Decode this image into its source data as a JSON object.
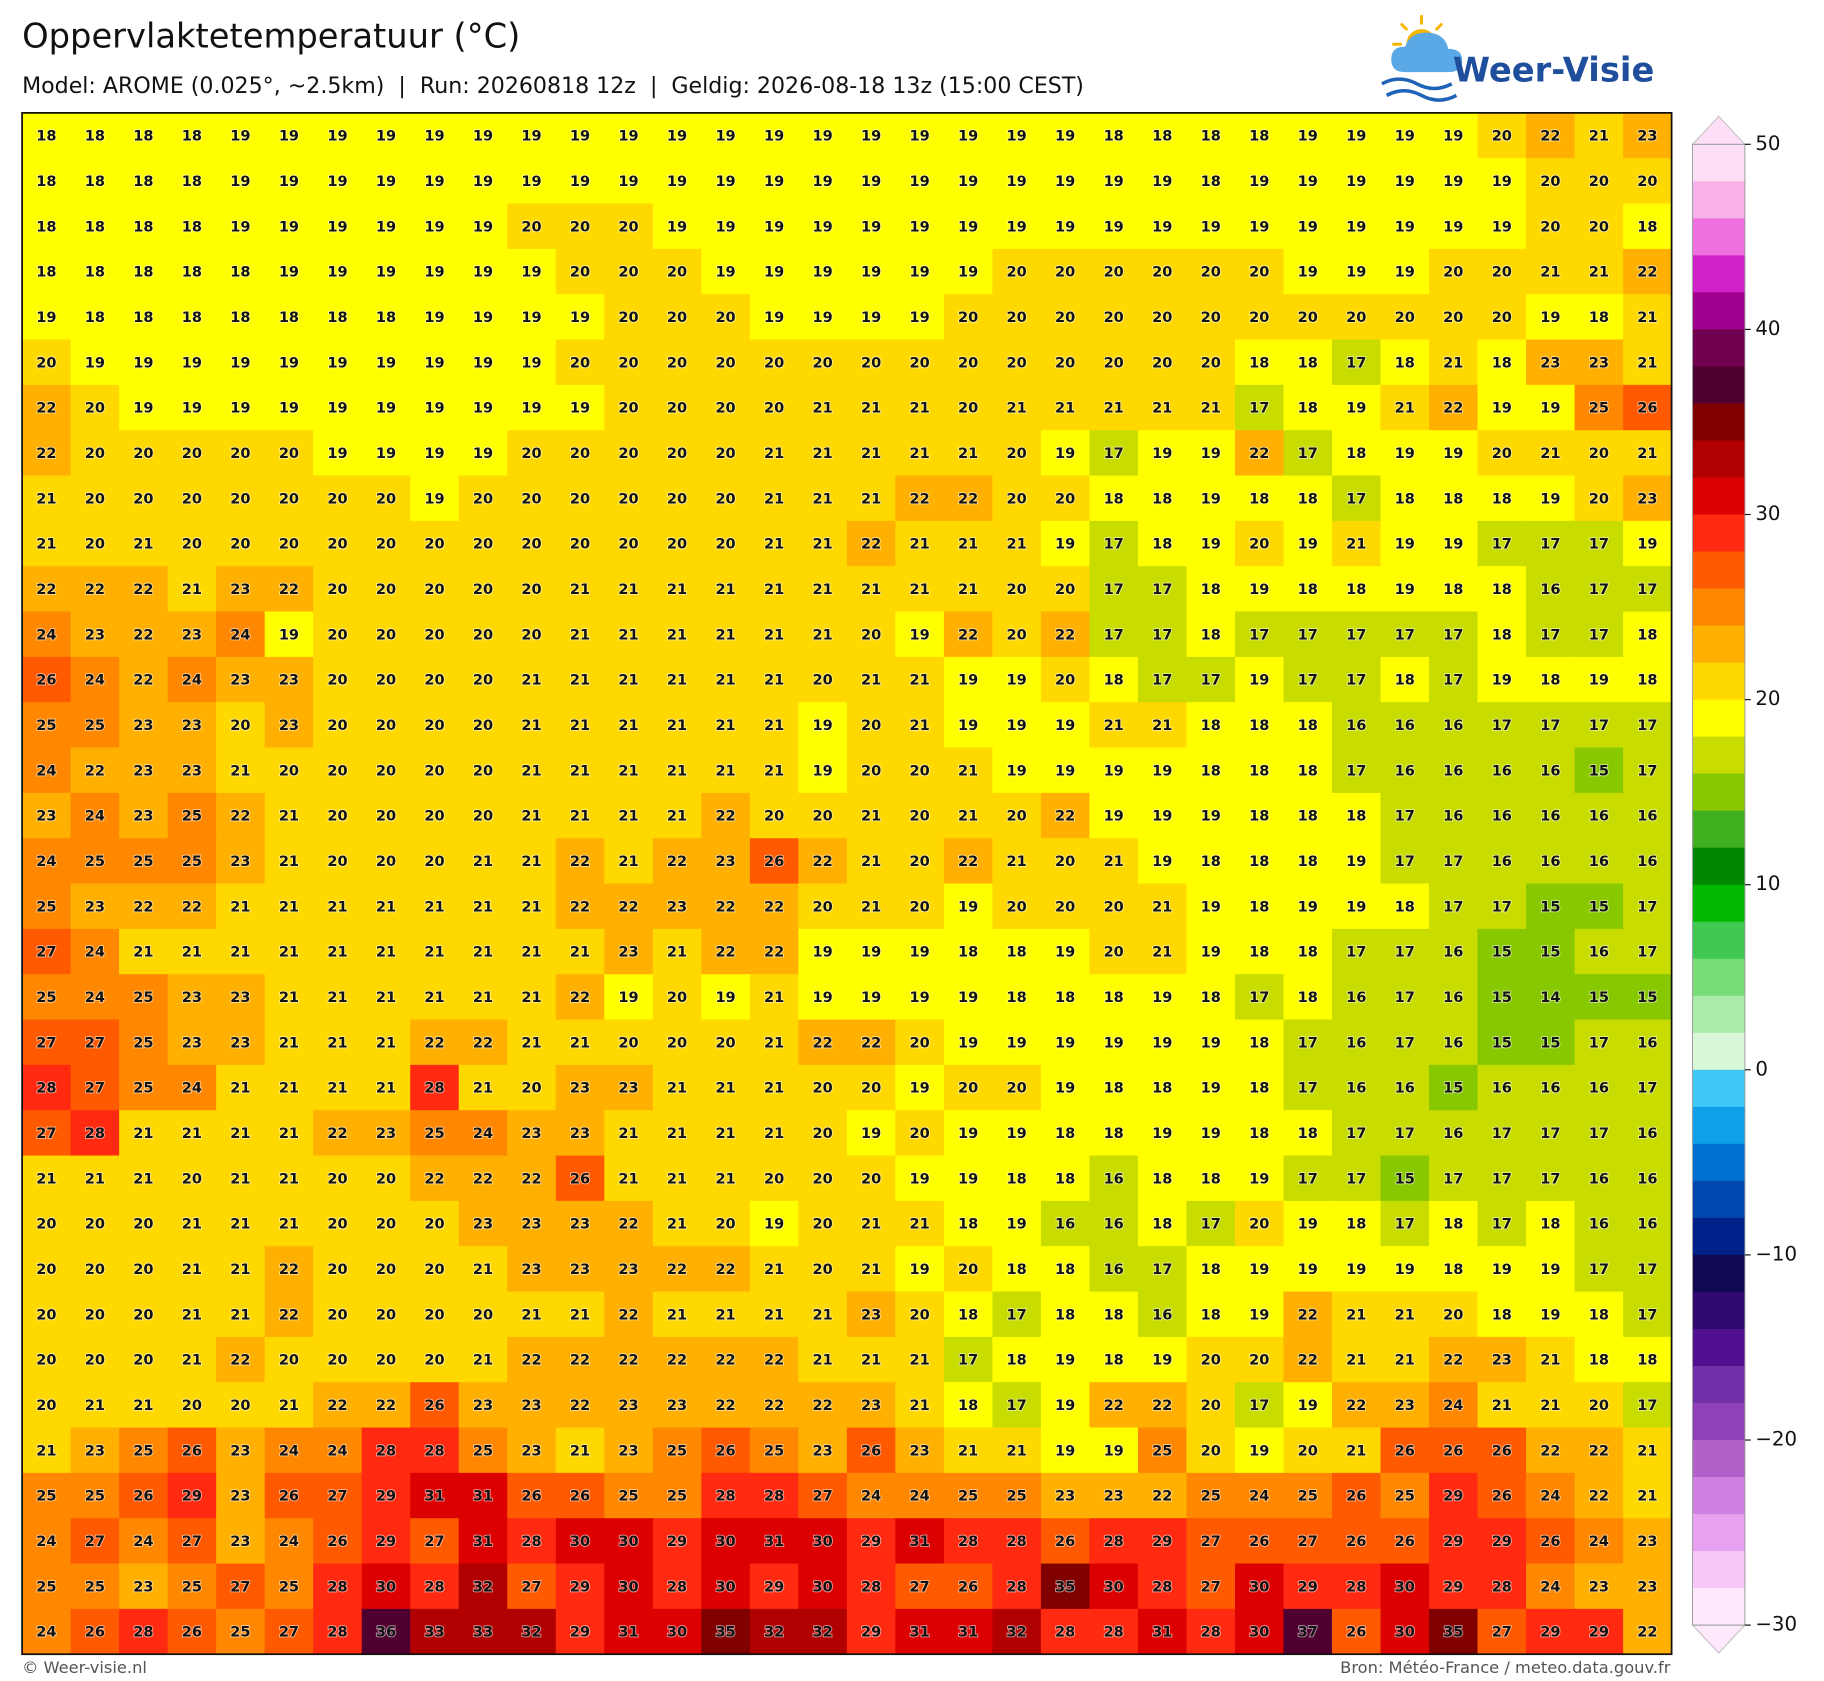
{
  "title": "Oppervlaktetemperatuur (°C)",
  "subtitle": "Model: AROME (0.025°, ~2.5km)  |  Run: 20260818 12z  |  Geldig: 2026-08-18 13z (15:00 CEST)",
  "logo": "Weer-Visie",
  "grid": {
    "rows": [
      [
        18,
        18,
        18,
        18,
        19,
        19,
        19,
        19,
        19,
        19,
        19,
        19,
        19,
        19,
        19,
        19,
        19,
        19,
        19,
        19,
        19,
        19,
        18,
        18,
        18,
        18,
        19,
        19,
        19,
        19,
        20,
        22,
        21,
        23
      ],
      [
        18,
        18,
        18,
        18,
        19,
        19,
        19,
        19,
        19,
        19,
        19,
        19,
        19,
        19,
        19,
        19,
        19,
        19,
        19,
        19,
        19,
        19,
        19,
        19,
        18,
        19,
        19,
        19,
        19,
        19,
        19,
        20,
        20,
        20
      ],
      [
        18,
        18,
        18,
        18,
        19,
        19,
        19,
        19,
        19,
        19,
        20,
        20,
        20,
        19,
        19,
        19,
        19,
        19,
        19,
        19,
        19,
        19,
        19,
        19,
        19,
        19,
        19,
        19,
        19,
        19,
        19,
        20,
        20,
        18
      ],
      [
        18,
        18,
        18,
        18,
        18,
        19,
        19,
        19,
        19,
        19,
        19,
        20,
        20,
        20,
        19,
        19,
        19,
        19,
        19,
        19,
        20,
        20,
        20,
        20,
        20,
        20,
        19,
        19,
        19,
        20,
        20,
        21,
        21,
        22
      ],
      [
        19,
        18,
        18,
        18,
        18,
        18,
        18,
        18,
        19,
        19,
        19,
        19,
        20,
        20,
        20,
        19,
        19,
        19,
        19,
        20,
        20,
        20,
        20,
        20,
        20,
        20,
        20,
        20,
        20,
        20,
        20,
        19,
        18,
        21
      ],
      [
        20,
        19,
        19,
        19,
        19,
        19,
        19,
        19,
        19,
        19,
        19,
        20,
        20,
        20,
        20,
        20,
        20,
        20,
        20,
        20,
        20,
        20,
        20,
        20,
        20,
        18,
        18,
        17,
        18,
        21,
        18,
        23,
        23,
        21
      ],
      [
        22,
        20,
        19,
        19,
        19,
        19,
        19,
        19,
        19,
        19,
        19,
        19,
        20,
        20,
        20,
        20,
        21,
        21,
        21,
        20,
        21,
        21,
        21,
        21,
        21,
        17,
        18,
        19,
        21,
        22,
        19,
        19,
        25,
        26
      ],
      [
        22,
        20,
        20,
        20,
        20,
        20,
        19,
        19,
        19,
        19,
        20,
        20,
        20,
        20,
        20,
        21,
        21,
        21,
        21,
        21,
        20,
        19,
        17,
        19,
        19,
        22,
        17,
        18,
        19,
        19,
        20,
        21,
        20,
        21
      ],
      [
        21,
        20,
        20,
        20,
        20,
        20,
        20,
        20,
        19,
        20,
        20,
        20,
        20,
        20,
        20,
        21,
        21,
        21,
        22,
        22,
        20,
        20,
        18,
        18,
        19,
        18,
        18,
        17,
        18,
        18,
        18,
        19,
        20,
        23
      ],
      [
        21,
        20,
        21,
        20,
        20,
        20,
        20,
        20,
        20,
        20,
        20,
        20,
        20,
        20,
        20,
        21,
        21,
        22,
        21,
        21,
        21,
        19,
        17,
        18,
        19,
        20,
        19,
        21,
        19,
        19,
        17,
        17,
        17,
        19
      ],
      [
        22,
        22,
        22,
        21,
        23,
        22,
        20,
        20,
        20,
        20,
        20,
        21,
        21,
        21,
        21,
        21,
        21,
        21,
        21,
        21,
        20,
        20,
        17,
        17,
        18,
        19,
        18,
        18,
        19,
        18,
        18,
        16,
        17,
        17
      ],
      [
        24,
        23,
        22,
        23,
        24,
        19,
        20,
        20,
        20,
        20,
        20,
        21,
        21,
        21,
        21,
        21,
        21,
        20,
        19,
        22,
        20,
        22,
        17,
        17,
        18,
        17,
        17,
        17,
        17,
        17,
        18,
        17,
        17,
        18
      ],
      [
        26,
        24,
        22,
        24,
        23,
        23,
        20,
        20,
        20,
        20,
        21,
        21,
        21,
        21,
        21,
        21,
        20,
        21,
        21,
        19,
        19,
        20,
        18,
        17,
        17,
        19,
        17,
        17,
        18,
        17,
        19,
        18,
        19,
        18
      ],
      [
        25,
        25,
        23,
        23,
        20,
        23,
        20,
        20,
        20,
        20,
        21,
        21,
        21,
        21,
        21,
        21,
        19,
        20,
        21,
        19,
        19,
        19,
        21,
        21,
        18,
        18,
        18,
        16,
        16,
        16,
        17,
        17,
        17,
        17
      ],
      [
        24,
        22,
        23,
        23,
        21,
        20,
        20,
        20,
        20,
        20,
        21,
        21,
        21,
        21,
        21,
        21,
        19,
        20,
        20,
        21,
        19,
        19,
        19,
        19,
        18,
        18,
        18,
        17,
        16,
        16,
        16,
        16,
        15,
        17
      ],
      [
        23,
        24,
        23,
        25,
        22,
        21,
        20,
        20,
        20,
        20,
        21,
        21,
        21,
        21,
        22,
        20,
        20,
        21,
        20,
        21,
        20,
        22,
        19,
        19,
        19,
        18,
        18,
        18,
        17,
        16,
        16,
        16,
        16,
        16
      ],
      [
        24,
        25,
        25,
        25,
        23,
        21,
        20,
        20,
        20,
        21,
        21,
        22,
        21,
        22,
        23,
        26,
        22,
        21,
        20,
        22,
        21,
        20,
        21,
        19,
        18,
        18,
        18,
        19,
        17,
        17,
        16,
        16,
        16,
        16
      ],
      [
        25,
        23,
        22,
        22,
        21,
        21,
        21,
        21,
        21,
        21,
        21,
        22,
        22,
        23,
        22,
        22,
        20,
        21,
        20,
        19,
        20,
        20,
        20,
        21,
        19,
        18,
        19,
        19,
        18,
        17,
        17,
        15,
        15,
        17
      ],
      [
        27,
        24,
        21,
        21,
        21,
        21,
        21,
        21,
        21,
        21,
        21,
        21,
        23,
        21,
        22,
        22,
        19,
        19,
        19,
        18,
        18,
        19,
        20,
        21,
        19,
        18,
        18,
        17,
        17,
        16,
        15,
        15,
        16,
        17
      ],
      [
        25,
        24,
        25,
        23,
        23,
        21,
        21,
        21,
        21,
        21,
        21,
        22,
        19,
        20,
        19,
        21,
        19,
        19,
        19,
        19,
        18,
        18,
        18,
        19,
        18,
        17,
        18,
        16,
        17,
        16,
        15,
        14,
        15,
        15
      ],
      [
        27,
        27,
        25,
        23,
        23,
        21,
        21,
        21,
        22,
        22,
        21,
        21,
        20,
        20,
        20,
        21,
        22,
        22,
        20,
        19,
        19,
        19,
        19,
        19,
        19,
        18,
        17,
        16,
        17,
        16,
        15,
        15,
        17,
        16
      ],
      [
        28,
        27,
        25,
        24,
        21,
        21,
        21,
        21,
        28,
        21,
        20,
        23,
        23,
        21,
        21,
        21,
        20,
        20,
        19,
        20,
        20,
        19,
        18,
        18,
        19,
        18,
        17,
        16,
        16,
        15,
        16,
        16,
        16,
        17
      ],
      [
        27,
        28,
        21,
        21,
        21,
        21,
        22,
        23,
        25,
        24,
        23,
        23,
        21,
        21,
        21,
        21,
        20,
        19,
        20,
        19,
        19,
        18,
        18,
        19,
        19,
        18,
        18,
        17,
        17,
        16,
        17,
        17,
        17,
        16
      ],
      [
        21,
        21,
        21,
        20,
        21,
        21,
        20,
        20,
        22,
        22,
        22,
        26,
        21,
        21,
        21,
        20,
        20,
        20,
        19,
        19,
        18,
        18,
        16,
        18,
        18,
        19,
        17,
        17,
        15,
        17,
        17,
        17,
        16,
        16
      ],
      [
        20,
        20,
        20,
        21,
        21,
        21,
        20,
        20,
        20,
        23,
        23,
        23,
        22,
        21,
        20,
        19,
        20,
        21,
        21,
        18,
        19,
        16,
        16,
        18,
        17,
        20,
        19,
        18,
        17,
        18,
        17,
        18,
        16,
        16
      ],
      [
        20,
        20,
        20,
        21,
        21,
        22,
        20,
        20,
        20,
        21,
        23,
        23,
        23,
        22,
        22,
        21,
        20,
        21,
        19,
        20,
        18,
        18,
        16,
        17,
        18,
        19,
        19,
        19,
        19,
        18,
        19,
        19,
        17,
        17
      ],
      [
        20,
        20,
        20,
        21,
        21,
        22,
        20,
        20,
        20,
        20,
        21,
        21,
        22,
        21,
        21,
        21,
        21,
        23,
        20,
        18,
        17,
        18,
        18,
        16,
        18,
        19,
        22,
        21,
        21,
        20,
        18,
        19,
        18,
        17
      ],
      [
        20,
        20,
        20,
        21,
        22,
        20,
        20,
        20,
        20,
        21,
        22,
        22,
        22,
        22,
        22,
        22,
        21,
        21,
        21,
        17,
        18,
        19,
        18,
        19,
        20,
        20,
        22,
        21,
        21,
        22,
        23,
        21,
        18,
        18
      ],
      [
        20,
        21,
        21,
        20,
        20,
        21,
        22,
        22,
        26,
        23,
        23,
        22,
        23,
        23,
        22,
        22,
        22,
        23,
        21,
        18,
        17,
        19,
        22,
        22,
        20,
        17,
        19,
        22,
        23,
        24,
        21,
        21,
        20,
        17
      ],
      [
        21,
        23,
        25,
        26,
        23,
        24,
        24,
        28,
        28,
        25,
        23,
        21,
        23,
        25,
        26,
        25,
        23,
        26,
        23,
        21,
        21,
        19,
        19,
        25,
        20,
        19,
        20,
        21,
        26,
        26,
        26,
        22,
        22,
        21
      ],
      [
        25,
        25,
        26,
        29,
        23,
        26,
        27,
        29,
        31,
        31,
        26,
        26,
        25,
        25,
        28,
        28,
        27,
        24,
        24,
        25,
        25,
        23,
        23,
        22,
        25,
        24,
        25,
        26,
        25,
        29,
        26,
        24,
        22,
        21
      ],
      [
        24,
        27,
        24,
        27,
        23,
        24,
        26,
        29,
        27,
        31,
        28,
        30,
        30,
        29,
        30,
        31,
        30,
        29,
        31,
        28,
        28,
        26,
        28,
        29,
        27,
        26,
        27,
        26,
        26,
        29,
        29,
        26,
        24,
        23
      ],
      [
        25,
        25,
        23,
        25,
        27,
        25,
        28,
        30,
        28,
        32,
        27,
        29,
        30,
        28,
        30,
        29,
        30,
        28,
        27,
        26,
        28,
        35,
        30,
        28,
        27,
        30,
        29,
        28,
        30,
        29,
        28,
        24,
        23,
        23
      ],
      [
        24,
        26,
        28,
        26,
        25,
        27,
        28,
        36,
        33,
        33,
        32,
        29,
        31,
        30,
        35,
        32,
        32,
        29,
        31,
        31,
        32,
        28,
        28,
        31,
        28,
        30,
        37,
        26,
        30,
        35,
        27,
        29,
        29,
        22
      ]
    ]
  },
  "colorbar": {
    "lim": [
      -30,
      50
    ],
    "ticks": [
      50,
      40,
      30,
      20,
      10,
      0,
      {
        "value": -10,
        "label": "−10"
      },
      {
        "value": -20,
        "label": "−20"
      },
      {
        "value": -30,
        "label": "−30"
      }
    ],
    "colors": [
      "#fde0f8",
      "#f8b0e8",
      "#f070e0",
      "#d020c8",
      "#a00090",
      "#700050",
      "#500030",
      "#800000",
      "#b00000",
      "#dd0000",
      "#ff2a10",
      "#ff5a00",
      "#ff8800",
      "#ffb000",
      "#ffd800",
      "#ffff00",
      "#c8dc00",
      "#88c800",
      "#40b020",
      "#008800",
      "#00b800",
      "#40c850",
      "#78dc78",
      "#a8eca8",
      "#d8f8d8",
      "#40c8f8",
      "#10a0e8",
      "#0070d0",
      "#0048b0",
      "#00208a",
      "#100850",
      "#300870",
      "#501090",
      "#7030a8",
      "#9040b8",
      "#b060c8",
      "#d080e0",
      "#e8a0f0",
      "#f8c8f8",
      "#fde8fc"
    ]
  },
  "footer": {
    "left": "© Weer-visie.nl",
    "right": "Bron: Météo-France / meteo.data.gouv.fr"
  }
}
